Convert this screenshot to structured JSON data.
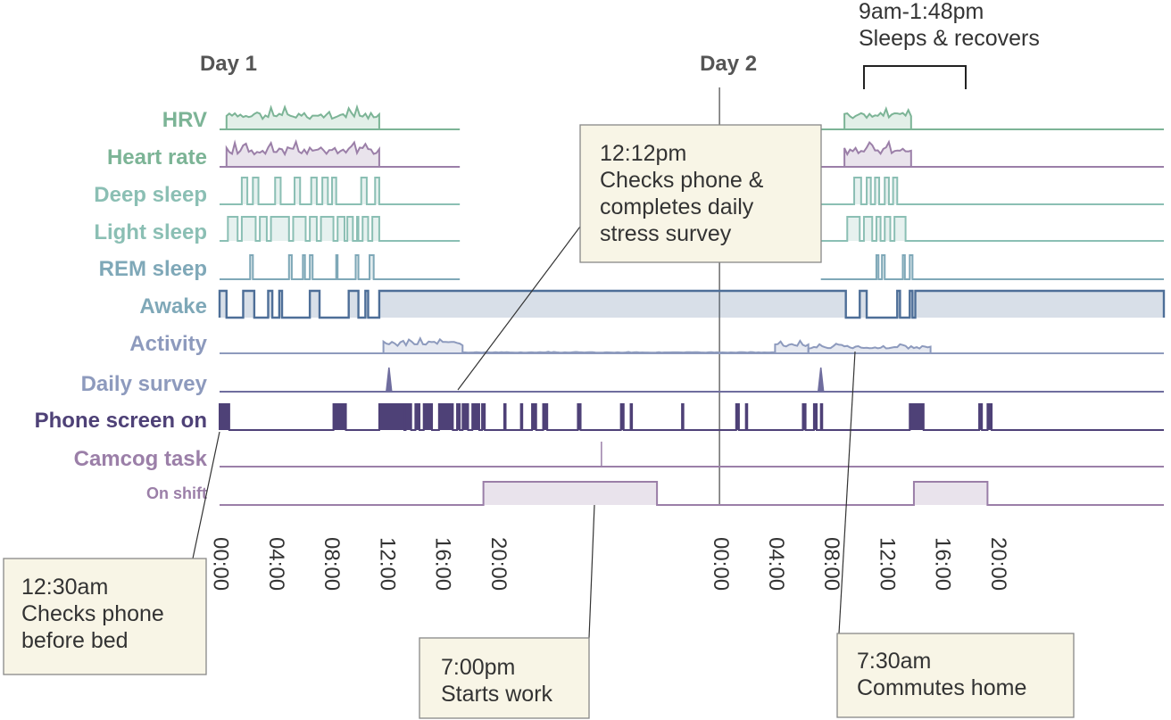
{
  "colors": {
    "hrv": "#7cb496",
    "heart_rate": "#9b7fa8",
    "deep_sleep": "#8bbfb4",
    "light_sleep": "#8bbfb4",
    "rem_sleep": "#7fa8b8",
    "awake": "#4e6f98",
    "activity": "#8d9abd",
    "daily_survey": "#6f6d9e",
    "phone": "#4e4177",
    "camcog": "#9b7fa8",
    "shift": "#9b7fa8",
    "note_bg": "#f8f5e6",
    "note_border": "#888888"
  },
  "chart_data": {
    "type": "line",
    "title": "",
    "x_unit": "hours since Day 1 00:00",
    "xlim": [
      0,
      68
    ],
    "day_labels": [
      {
        "label": "Day 1",
        "x": 0
      },
      {
        "label": "Day 2",
        "x": 36
      }
    ],
    "tick_labels": [
      "00:00",
      "04:00",
      "08:00",
      "12:00",
      "16:00",
      "20:00",
      "00:00",
      "04:00",
      "08:00",
      "12:00",
      "16:00",
      "20:00"
    ],
    "tick_positions": [
      0,
      4,
      8,
      12,
      16,
      20,
      36,
      40,
      44,
      48,
      52,
      56
    ],
    "x_axis_note": "Day 2 begins at x = 36",
    "series": [
      {
        "name": "HRV",
        "label": "HRV",
        "kind": "signal",
        "segments": [
          {
            "start": 0.5,
            "end": 11.5
          },
          {
            "start": 45,
            "end": 49.8
          }
        ]
      },
      {
        "name": "Heart rate",
        "label": "Heart rate",
        "kind": "signal",
        "segments": [
          {
            "start": 0.5,
            "end": 11.5
          },
          {
            "start": 45,
            "end": 49.8
          }
        ]
      },
      {
        "name": "Deep sleep",
        "label": "Deep sleep",
        "kind": "intervals",
        "intervals": [
          [
            1.6,
            2
          ],
          [
            2.4,
            2.8
          ],
          [
            4,
            4.4
          ],
          [
            5.4,
            5.8
          ],
          [
            6.6,
            7
          ],
          [
            7.4,
            7.8
          ],
          [
            8.1,
            8.4
          ],
          [
            10.2,
            10.6
          ],
          [
            11.2,
            11.5
          ],
          [
            45.7,
            46.2
          ],
          [
            46.6,
            46.9
          ],
          [
            47.2,
            47.5
          ],
          [
            47.9,
            48.2
          ],
          [
            48.5,
            48.8
          ]
        ],
        "gaps": [
          {
            "start": 17.3,
            "end": 43.3
          }
        ]
      },
      {
        "name": "Light sleep",
        "label": "Light sleep",
        "kind": "intervals",
        "intervals": [
          [
            0.6,
            1.3
          ],
          [
            1.6,
            2.6
          ],
          [
            2.9,
            3.4
          ],
          [
            3.7,
            5
          ],
          [
            5.3,
            6.2
          ],
          [
            6.5,
            7
          ],
          [
            7.3,
            8.2
          ],
          [
            8.5,
            9
          ],
          [
            9.2,
            9.6
          ],
          [
            9.9,
            10
          ],
          [
            10.3,
            10.7
          ],
          [
            11,
            11.5
          ],
          [
            45.2,
            46.1
          ],
          [
            46.4,
            47
          ],
          [
            47.3,
            47.6
          ],
          [
            47.9,
            48.3
          ],
          [
            48.6,
            49.4
          ]
        ],
        "gaps": [
          {
            "start": 17.3,
            "end": 43.3
          }
        ]
      },
      {
        "name": "REM sleep",
        "label": "REM sleep",
        "kind": "intervals",
        "intervals": [
          [
            2.2,
            2.4
          ],
          [
            5,
            5.2
          ],
          [
            6,
            6.15
          ],
          [
            6.5,
            6.7
          ],
          [
            8.4,
            8.5
          ],
          [
            9.8,
            10
          ],
          [
            10.8,
            11.1
          ],
          [
            47.3,
            47.45
          ],
          [
            47.7,
            47.9
          ],
          [
            49.2,
            49.35
          ],
          [
            49.7,
            49.9
          ]
        ],
        "gaps": [
          {
            "start": 17.3,
            "end": 43.3
          }
        ]
      },
      {
        "name": "Awake",
        "label": "Awake",
        "kind": "intervals",
        "intervals": [
          [
            0,
            0.5
          ],
          [
            1.7,
            2.5
          ],
          [
            3.5,
            3.8
          ],
          [
            4.3,
            4.5
          ],
          [
            6.5,
            7.2
          ],
          [
            9.3,
            10
          ],
          [
            10.5,
            10.7
          ],
          [
            11.5,
            45.1
          ],
          [
            46.1,
            46.6
          ],
          [
            48.8,
            49
          ],
          [
            49.7,
            49.9
          ],
          [
            50.1,
            68
          ]
        ],
        "gaps": []
      },
      {
        "name": "Activity",
        "label": "Activity",
        "kind": "signal",
        "segments": [
          {
            "start": 11.8,
            "end": 17.5
          },
          {
            "start": 17.5,
            "end": 40
          },
          {
            "start": 40,
            "end": 42.4
          },
          {
            "start": 42.4,
            "end": 51.2
          }
        ]
      },
      {
        "name": "Daily survey",
        "label": "Daily survey",
        "kind": "events",
        "events": [
          12.2,
          43.3
        ]
      },
      {
        "name": "Phone screen on",
        "label": "Phone screen on",
        "kind": "intervals",
        "intervals": [
          [
            0,
            0.7
          ],
          [
            8.2,
            9.1
          ],
          [
            11.5,
            13.3
          ],
          [
            13.4,
            13.8
          ],
          [
            14.1,
            14.4
          ],
          [
            14.7,
            15.3
          ],
          [
            15.8,
            16.8
          ],
          [
            17.1,
            17.3
          ],
          [
            17.5,
            17.9
          ],
          [
            18.2,
            18.7
          ],
          [
            18.9,
            19.1
          ],
          [
            20.5,
            20.6
          ],
          [
            21.7,
            21.8
          ],
          [
            22.5,
            22.8
          ],
          [
            23.3,
            23.6
          ],
          [
            25.8,
            26
          ],
          [
            28.9,
            29.1
          ],
          [
            29.6,
            29.7
          ],
          [
            33.3,
            33.4
          ],
          [
            37.2,
            37.4
          ],
          [
            37.9,
            38
          ],
          [
            42,
            42.2
          ],
          [
            42.8,
            43
          ],
          [
            43.3,
            43.4
          ],
          [
            49.7,
            50.7
          ],
          [
            54.7,
            54.9
          ],
          [
            55.3,
            55.6
          ]
        ],
        "gaps": []
      },
      {
        "name": "Camcog task",
        "label": "Camcog task",
        "kind": "events",
        "events": [
          27.5
        ]
      },
      {
        "name": "On shift",
        "label": "On shift",
        "kind": "intervals",
        "intervals": [
          [
            19,
            31.5
          ],
          [
            50,
            55.3
          ]
        ],
        "gaps": []
      }
    ],
    "annotations": [
      {
        "lines": [
          "12:12pm",
          "Checks phone &",
          "completes daily",
          "stress survey"
        ]
      },
      {
        "lines": [
          "9am-1:48pm",
          "Sleeps & recovers"
        ]
      },
      {
        "lines": [
          "12:30am",
          "Checks phone",
          "before bed"
        ]
      },
      {
        "lines": [
          "7:00pm",
          "Starts work"
        ]
      },
      {
        "lines": [
          "7:30am",
          "Commutes home"
        ]
      }
    ]
  }
}
